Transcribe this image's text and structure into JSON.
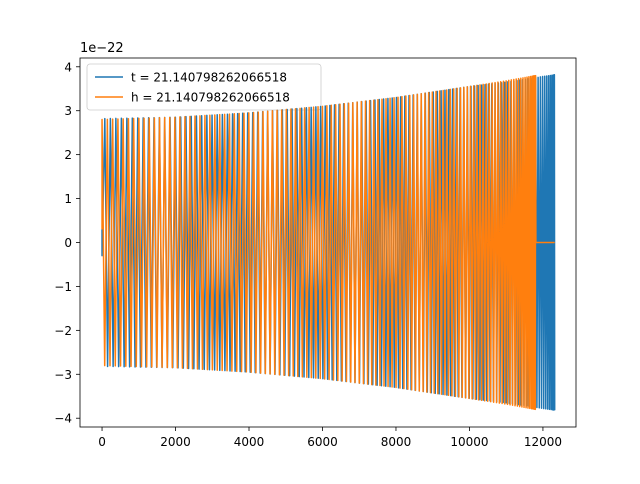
{
  "chart_data": {
    "type": "line",
    "title": "",
    "xlabel": "",
    "ylabel": "",
    "y_offset_label": "1e−22",
    "xlim": [
      -600,
      12900
    ],
    "ylim": [
      -4.2,
      4.2
    ],
    "xticks": [
      0,
      2000,
      4000,
      6000,
      8000,
      10000,
      12000
    ],
    "yticks": [
      -4,
      -3,
      -2,
      -1,
      0,
      1,
      2,
      3,
      4
    ],
    "xtick_labels": [
      "0",
      "2000",
      "4000",
      "6000",
      "8000",
      "10000",
      "12000"
    ],
    "ytick_labels": [
      "−4",
      "−3",
      "−2",
      "−1",
      "0",
      "1",
      "2",
      "3",
      "4"
    ],
    "grid": false,
    "legend_position": "top-left",
    "series": [
      {
        "name": "t = 21.140798262066518",
        "color": "#1f77b4",
        "x": [
          0,
          10,
          20,
          40,
          2000,
          4000,
          6000,
          8000,
          10000,
          11000,
          11800,
          12000,
          12200,
          12320
        ],
        "amplitude": [
          0.3,
          3.4,
          3.3,
          2.82,
          2.85,
          2.95,
          3.1,
          3.3,
          3.55,
          3.65,
          3.75,
          3.78,
          3.8,
          3.82
        ]
      },
      {
        "name": "h = 21.140798262066518",
        "color": "#ff7f0e",
        "x": [
          0,
          2000,
          4000,
          6000,
          8000,
          10000,
          11000,
          11800,
          11810,
          12320
        ],
        "amplitude": [
          2.8,
          2.85,
          2.95,
          3.1,
          3.3,
          3.55,
          3.68,
          3.8,
          0,
          0
        ]
      }
    ]
  }
}
